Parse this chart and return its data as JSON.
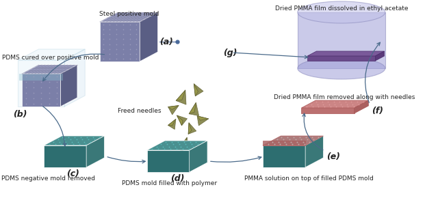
{
  "bg_color": "#ffffff",
  "labels": {
    "a": "(a)",
    "b": "(b)",
    "c": "(c)",
    "d": "(d)",
    "e": "(e)",
    "f": "(f)",
    "g": "(g)"
  },
  "descriptions": {
    "steel_mold": "Steel positive mold",
    "pdms_cured": "PDMS cured over positive mold",
    "pdms_neg": "PDMS negative mold removed",
    "pdms_filled": "PDMS mold filled with polymer",
    "pmma_solution": "PMMA solution on top of filled PDMS mold",
    "dried_pmma_removed": "Dried PMMA film removed along with needles",
    "dried_pmma_dissolved": "Dried PMMA film dissolved in ethyl acetate",
    "freed_needles": "Freed needles"
  },
  "colors": {
    "steel_gray": "#7b7fa8",
    "steel_top": "#9a9ec0",
    "steel_side_dark": "#5a5e84",
    "teal_top": "#4a9090",
    "teal_front": "#2d6e70",
    "teal_side": "#3a7878",
    "needle_olive": "#7a7a3a",
    "pmma_film": "#6a4a8a",
    "text_color": "#222222",
    "arrow_color": "#4a6a8a",
    "dot_color": "#4a6a9a"
  },
  "font_size": {
    "label": 8,
    "description": 6.5
  }
}
